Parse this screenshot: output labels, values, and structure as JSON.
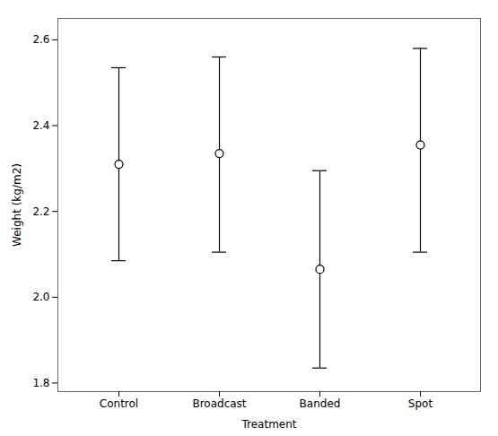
{
  "chart_data": {
    "type": "errorbar",
    "categories": [
      "Control",
      "Broadcast",
      "Banded",
      "Spot"
    ],
    "values": [
      2.31,
      2.335,
      2.065,
      2.355
    ],
    "upper_errors": [
      0.225,
      0.225,
      0.23,
      0.225
    ],
    "lower_errors": [
      0.225,
      0.23,
      0.23,
      0.25
    ],
    "xlabel": "Treatment",
    "ylabel": "Weight (kg/m2)",
    "ylim": [
      1.78,
      2.65
    ],
    "yticks": [
      1.8,
      {
        "value": 2.0,
        "label": "2.0"
      },
      2.2,
      2.4,
      2.6
    ],
    "color": "black",
    "marker": "circle",
    "grid": false
  }
}
